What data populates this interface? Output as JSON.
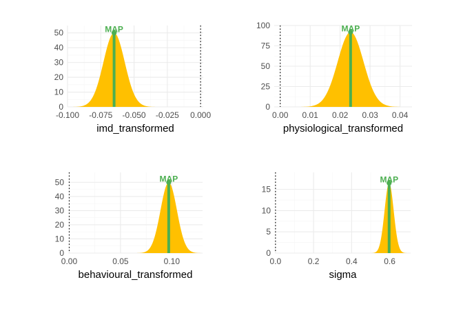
{
  "colors": {
    "density_fill": "#FFC000",
    "map": "#4CAF50",
    "zero_line": "#000000",
    "grid_major": "#EBEBEB",
    "grid_minor": "#F5F5F5",
    "tick_text": "#4D4D4D"
  },
  "chart_data": [
    {
      "type": "area",
      "xlabel": "imd_transformed",
      "x_ticks": [
        -0.1,
        -0.075,
        -0.05,
        -0.025,
        0.0
      ],
      "x_tick_labels": [
        "-0.100",
        "-0.075",
        "-0.050",
        "-0.025",
        "0.000"
      ],
      "y_ticks": [
        0,
        10,
        20,
        30,
        40,
        50
      ],
      "y_tick_labels": [
        "0",
        "10",
        "20",
        "30",
        "40",
        "50"
      ],
      "xlim": [
        -0.1,
        0.002
      ],
      "ylim": [
        0,
        55
      ],
      "density": {
        "mean": -0.065,
        "sd": 0.008,
        "peak": 50
      },
      "map": {
        "x": -0.065,
        "y": 50,
        "label": "MAP"
      },
      "zero_line": 0.0,
      "grid": true
    },
    {
      "type": "area",
      "xlabel": "physiological_transformed",
      "x_ticks": [
        0.0,
        0.01,
        0.02,
        0.03,
        0.04
      ],
      "x_tick_labels": [
        "0.00",
        "0.01",
        "0.02",
        "0.03",
        "0.04"
      ],
      "y_ticks": [
        0,
        25,
        50,
        75,
        100
      ],
      "y_tick_labels": [
        "0",
        "25",
        "50",
        "75",
        "100"
      ],
      "xlim": [
        -0.002,
        0.044
      ],
      "ylim": [
        0,
        100
      ],
      "density": {
        "mean": 0.0235,
        "sd": 0.0043,
        "peak": 92
      },
      "map": {
        "x": 0.0235,
        "y": 92,
        "label": "MAP"
      },
      "zero_line": 0.0,
      "grid": true
    },
    {
      "type": "area",
      "xlabel": "behavioural_transformed",
      "x_ticks": [
        0.0,
        0.05,
        0.1
      ],
      "x_tick_labels": [
        "0.00",
        "0.05",
        "0.10"
      ],
      "y_ticks": [
        0,
        10,
        20,
        30,
        40,
        50
      ],
      "y_tick_labels": [
        "0",
        "10",
        "20",
        "30",
        "40",
        "50"
      ],
      "xlim": [
        -0.001,
        0.13
      ],
      "ylim": [
        0,
        57
      ],
      "density": {
        "mean": 0.097,
        "sd": 0.008,
        "peak": 50
      },
      "map": {
        "x": 0.097,
        "y": 50,
        "label": "MAP"
      },
      "zero_line": 0.0,
      "grid": true
    },
    {
      "type": "area",
      "xlabel": "sigma",
      "x_ticks": [
        0.0,
        0.2,
        0.4,
        0.6
      ],
      "x_tick_labels": [
        "0.0",
        "0.2",
        "0.4",
        "0.6"
      ],
      "y_ticks": [
        0,
        5,
        10,
        15
      ],
      "y_tick_labels": [
        "0",
        "5",
        "10",
        "15"
      ],
      "xlim": [
        -0.003,
        0.71
      ],
      "ylim": [
        0,
        19
      ],
      "density": {
        "mean": 0.597,
        "sd": 0.024,
        "peak": 16.5
      },
      "map": {
        "x": 0.597,
        "y": 16.5,
        "label": "MAP"
      },
      "zero_line": 0.0,
      "grid": true
    }
  ]
}
